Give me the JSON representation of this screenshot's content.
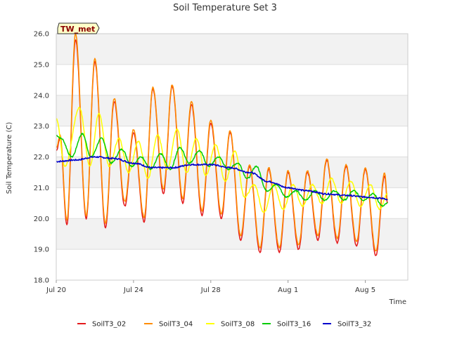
{
  "chart_data": {
    "type": "line",
    "title": "Soil Temperature Set 3",
    "xlabel": "Time",
    "ylabel": "Soil Temperature (C)",
    "badge": "TW_met",
    "x_start": "2024-07-20",
    "xlim_days": [
      0,
      18.2
    ],
    "ylim": [
      18.0,
      26.0
    ],
    "y_ticks": [
      "18.0",
      "19.0",
      "20.0",
      "21.0",
      "22.0",
      "23.0",
      "24.0",
      "25.0",
      "26.0"
    ],
    "x_ticks": [
      {
        "day": 0,
        "label": "Jul 20"
      },
      {
        "day": 4,
        "label": "Jul 24"
      },
      {
        "day": 8,
        "label": "Jul 28"
      },
      {
        "day": 12,
        "label": "Aug 1"
      },
      {
        "day": 16,
        "label": "Aug 5"
      }
    ],
    "grid": true,
    "banded_background": true,
    "legend_position": "bottom",
    "series": [
      {
        "name": "SoilT3_02",
        "color": "#e41a1c",
        "points": [
          [
            0.0,
            22.2
          ],
          [
            0.2,
            22.6
          ],
          [
            0.55,
            19.8
          ],
          [
            1.0,
            25.8
          ],
          [
            1.55,
            20.0
          ],
          [
            2.0,
            25.1
          ],
          [
            2.55,
            19.7
          ],
          [
            3.0,
            23.8
          ],
          [
            3.55,
            20.4
          ],
          [
            4.0,
            22.8
          ],
          [
            4.55,
            19.9
          ],
          [
            5.0,
            24.2
          ],
          [
            5.55,
            20.8
          ],
          [
            6.0,
            24.3
          ],
          [
            6.55,
            20.5
          ],
          [
            7.0,
            23.7
          ],
          [
            7.55,
            20.1
          ],
          [
            8.0,
            23.1
          ],
          [
            8.55,
            20.0
          ],
          [
            9.0,
            22.8
          ],
          [
            9.55,
            19.3
          ],
          [
            10.0,
            21.7
          ],
          [
            10.55,
            18.9
          ],
          [
            11.0,
            21.6
          ],
          [
            11.55,
            18.9
          ],
          [
            12.0,
            21.5
          ],
          [
            12.55,
            19.0
          ],
          [
            13.0,
            21.5
          ],
          [
            13.55,
            19.3
          ],
          [
            14.0,
            21.9
          ],
          [
            14.55,
            19.2
          ],
          [
            15.0,
            21.7
          ],
          [
            15.55,
            19.1
          ],
          [
            16.0,
            21.6
          ],
          [
            16.55,
            18.8
          ],
          [
            17.0,
            21.4
          ],
          [
            17.15,
            20.5
          ]
        ]
      },
      {
        "name": "SoilT3_04",
        "color": "#ff8c00",
        "points": [
          [
            0.0,
            22.3
          ],
          [
            0.2,
            22.7
          ],
          [
            0.55,
            19.95
          ],
          [
            1.0,
            26.0
          ],
          [
            1.55,
            20.1
          ],
          [
            2.0,
            25.2
          ],
          [
            2.55,
            19.85
          ],
          [
            3.0,
            23.9
          ],
          [
            3.55,
            20.55
          ],
          [
            4.0,
            22.9
          ],
          [
            4.55,
            20.05
          ],
          [
            5.0,
            24.25
          ],
          [
            5.55,
            20.95
          ],
          [
            6.0,
            24.35
          ],
          [
            6.55,
            20.65
          ],
          [
            7.0,
            23.8
          ],
          [
            7.55,
            20.25
          ],
          [
            8.0,
            23.2
          ],
          [
            8.55,
            20.15
          ],
          [
            9.0,
            22.85
          ],
          [
            9.55,
            19.45
          ],
          [
            10.0,
            21.75
          ],
          [
            10.55,
            19.05
          ],
          [
            11.0,
            21.65
          ],
          [
            11.55,
            19.05
          ],
          [
            12.0,
            21.55
          ],
          [
            12.55,
            19.15
          ],
          [
            13.0,
            21.55
          ],
          [
            13.55,
            19.45
          ],
          [
            14.0,
            21.95
          ],
          [
            14.55,
            19.35
          ],
          [
            15.0,
            21.75
          ],
          [
            15.55,
            19.25
          ],
          [
            16.0,
            21.65
          ],
          [
            16.55,
            18.95
          ],
          [
            17.0,
            21.5
          ],
          [
            17.15,
            20.6
          ]
        ]
      },
      {
        "name": "SoilT3_08",
        "color": "#ffff00",
        "points": [
          [
            0.0,
            23.25
          ],
          [
            0.45,
            21.7
          ],
          [
            1.2,
            23.6
          ],
          [
            1.75,
            21.7
          ],
          [
            2.2,
            23.4
          ],
          [
            2.75,
            21.7
          ],
          [
            3.25,
            22.6
          ],
          [
            3.75,
            21.5
          ],
          [
            4.25,
            22.5
          ],
          [
            4.75,
            21.3
          ],
          [
            5.25,
            22.7
          ],
          [
            5.75,
            21.6
          ],
          [
            6.25,
            22.9
          ],
          [
            6.75,
            21.5
          ],
          [
            7.25,
            22.6
          ],
          [
            7.75,
            21.4
          ],
          [
            8.25,
            22.4
          ],
          [
            8.75,
            21.2
          ],
          [
            9.25,
            22.2
          ],
          [
            9.75,
            20.7
          ],
          [
            10.25,
            21.1
          ],
          [
            10.75,
            20.2
          ],
          [
            11.25,
            21.1
          ],
          [
            11.75,
            20.3
          ],
          [
            12.25,
            21.1
          ],
          [
            12.75,
            20.4
          ],
          [
            13.25,
            21.1
          ],
          [
            13.75,
            20.5
          ],
          [
            14.25,
            21.3
          ],
          [
            14.75,
            20.5
          ],
          [
            15.25,
            21.2
          ],
          [
            15.75,
            20.4
          ],
          [
            16.25,
            21.1
          ],
          [
            16.75,
            20.3
          ],
          [
            17.15,
            20.8
          ]
        ]
      },
      {
        "name": "SoilT3_16",
        "color": "#00cc00",
        "points": [
          [
            0.0,
            22.7
          ],
          [
            0.25,
            22.6
          ],
          [
            0.8,
            22.0
          ],
          [
            1.35,
            22.75
          ],
          [
            1.8,
            22.0
          ],
          [
            2.35,
            22.6
          ],
          [
            2.85,
            21.8
          ],
          [
            3.4,
            22.25
          ],
          [
            3.9,
            21.7
          ],
          [
            4.4,
            22.0
          ],
          [
            4.9,
            21.6
          ],
          [
            5.4,
            22.1
          ],
          [
            5.9,
            21.6
          ],
          [
            6.4,
            22.3
          ],
          [
            6.9,
            21.8
          ],
          [
            7.4,
            22.2
          ],
          [
            7.9,
            21.7
          ],
          [
            8.4,
            22.0
          ],
          [
            8.9,
            21.6
          ],
          [
            9.4,
            21.8
          ],
          [
            9.9,
            21.3
          ],
          [
            10.35,
            21.7
          ],
          [
            10.9,
            20.9
          ],
          [
            11.4,
            21.1
          ],
          [
            11.9,
            20.7
          ],
          [
            12.4,
            20.9
          ],
          [
            12.9,
            20.6
          ],
          [
            13.4,
            20.9
          ],
          [
            13.9,
            20.6
          ],
          [
            14.4,
            20.9
          ],
          [
            14.9,
            20.6
          ],
          [
            15.4,
            20.9
          ],
          [
            15.9,
            20.6
          ],
          [
            16.4,
            20.8
          ],
          [
            16.9,
            20.4
          ],
          [
            17.15,
            20.5
          ]
        ]
      },
      {
        "name": "SoilT3_32",
        "color": "#0000cc",
        "points": [
          [
            0.0,
            21.85
          ],
          [
            1.0,
            21.9
          ],
          [
            2.0,
            22.0
          ],
          [
            3.0,
            21.95
          ],
          [
            4.0,
            21.8
          ],
          [
            5.0,
            21.65
          ],
          [
            6.0,
            21.65
          ],
          [
            7.0,
            21.75
          ],
          [
            8.0,
            21.75
          ],
          [
            9.0,
            21.65
          ],
          [
            10.0,
            21.5
          ],
          [
            11.0,
            21.2
          ],
          [
            12.0,
            21.0
          ],
          [
            13.0,
            20.9
          ],
          [
            14.0,
            20.8
          ],
          [
            15.0,
            20.75
          ],
          [
            16.0,
            20.7
          ],
          [
            17.0,
            20.65
          ],
          [
            17.15,
            20.6
          ]
        ]
      }
    ]
  }
}
